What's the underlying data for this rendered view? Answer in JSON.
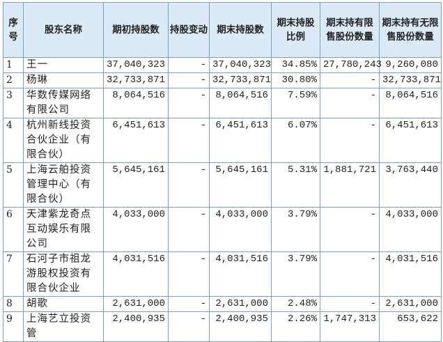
{
  "headers": [
    "序号",
    "股东名称",
    "期初持股数",
    "持股变动",
    "期末持股数",
    "期末持股比例",
    "期末持有限售股份数量",
    "期末持有无限售股份数量"
  ],
  "rows": [
    [
      "1",
      "王一",
      "37,040,323",
      "-",
      "37,040,323",
      "34.85%",
      "27,780,243",
      "9,260,080"
    ],
    [
      "2",
      "杨琳",
      "32,733,871",
      "-",
      "32,733,871",
      "30.80%",
      "-",
      "32,733,871"
    ],
    [
      "3",
      "华数传媒网络有限公司",
      "8,064,516",
      "-",
      "8,064,516",
      "7.59%",
      "-",
      "8,064,516"
    ],
    [
      "4",
      "杭州新线投资合伙企业（有限合伙）",
      "6,451,613",
      "-",
      "6,451,613",
      "6.07%",
      "-",
      "6,451,613"
    ],
    [
      "5",
      "上海云舶投资管理中心（有限合伙）",
      "5,645,161",
      "-",
      "5,645,161",
      "5.31%",
      "1,881,721",
      "3,763,440"
    ],
    [
      "6",
      "天津紫龙奇点互动娱乐有限公司",
      "4,033,000",
      "-",
      "4,033,000",
      "3.79%",
      "-",
      "4,033,000"
    ],
    [
      "7",
      "石河子市祖龙游股权投资有限合伙企业",
      "4,031,516",
      "-",
      "4,031,516",
      "3.79%",
      "-",
      "4,031,516"
    ],
    [
      "8",
      "胡歌",
      "2,631,000",
      "-",
      "2,631,000",
      "2.48%",
      "-",
      "2,631,000"
    ],
    [
      "9",
      "上海艺立投资管",
      "2,400,935",
      "-",
      "2,400,935",
      "2.26%",
      "1,747,313",
      "653,622"
    ]
  ]
}
